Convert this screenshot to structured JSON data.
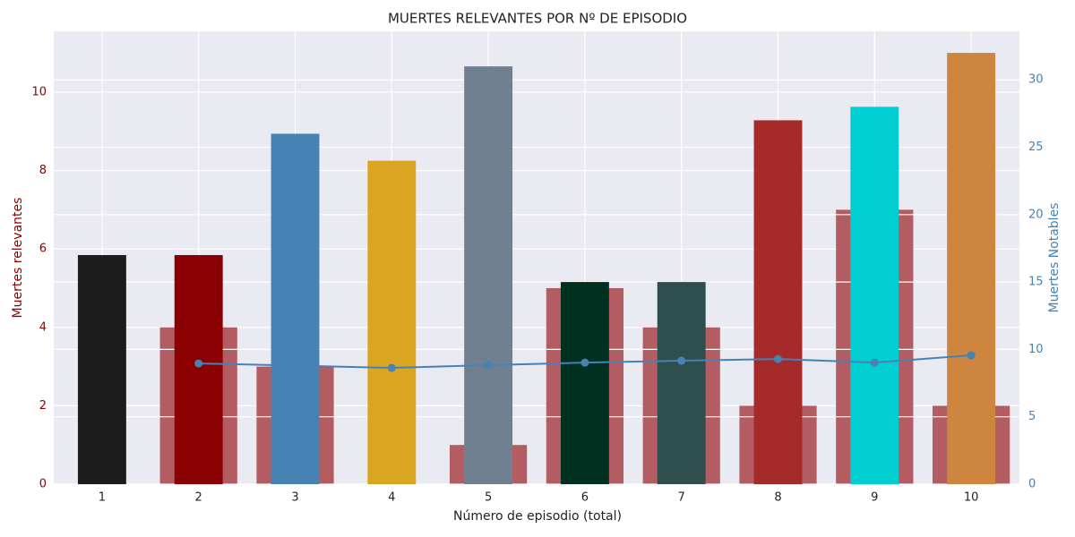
{
  "chart_data": {
    "type": "bar",
    "title": "MUERTES RELEVANTES POR Nº DE EPISODIO",
    "x_label": "Número de episodio (total)",
    "y_label": "Muertes relevantes",
    "y2_label": "Muertes Notables",
    "categories": [
      "1",
      "2",
      "3",
      "4",
      "5",
      "6",
      "7",
      "8",
      "9",
      "10"
    ],
    "ylim": [
      0,
      11.55
    ],
    "yticks": [
      0,
      2,
      4,
      6,
      8,
      10
    ],
    "y2lim": [
      0,
      33.6
    ],
    "y2ticks": [
      0,
      5,
      10,
      15,
      20,
      25,
      30
    ],
    "grid": true,
    "series": [
      {
        "type": "bar",
        "axis": "y",
        "color": "#b35c62",
        "width": 0.8,
        "values": [
          0,
          4,
          3,
          0,
          1,
          5,
          4,
          2,
          7,
          2
        ]
      },
      {
        "type": "bar",
        "axis": "y2",
        "width": 0.5,
        "colors": [
          "#1c1c1c",
          "#8b0000",
          "#4682b4",
          "#daa520",
          "#708090",
          "#00301f",
          "#2f4f4f",
          "#a52a2a",
          "#00ced1",
          "#cd853f"
        ],
        "values": [
          17,
          17,
          26,
          24,
          31,
          15,
          15,
          27,
          28,
          32
        ]
      },
      {
        "type": "line",
        "axis": "y2",
        "color": "#4682b4",
        "values": [
          null,
          8.96,
          8.8,
          8.63,
          8.83,
          9.02,
          9.16,
          9.29,
          9.02,
          9.56
        ]
      }
    ]
  }
}
